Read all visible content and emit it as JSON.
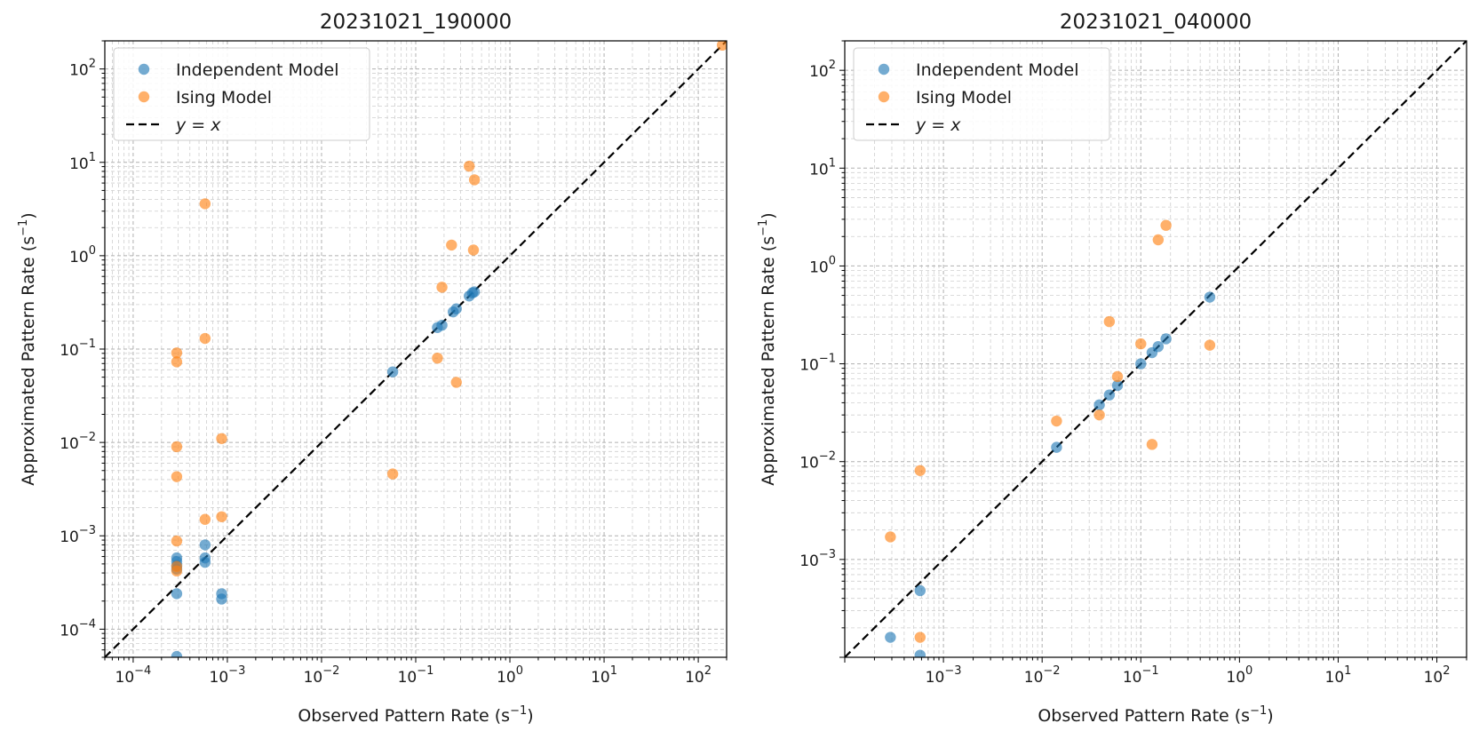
{
  "chart_data": [
    {
      "type": "scatter",
      "title": "20231021_190000",
      "xlabel_text": "Observed Pattern Rate (s",
      "xlabel_unit_exp": "−1",
      "xlabel_close": ")",
      "ylabel_text": "Approximated Pattern Rate (s",
      "ylabel_unit_exp": "−1",
      "ylabel_close": ")",
      "xscale": "log",
      "yscale": "log",
      "xlim": [
        5e-05,
        200
      ],
      "ylim": [
        5e-05,
        200
      ],
      "xticks": [
        {
          "base": "10",
          "exp": "−4",
          "value": 0.0001
        },
        {
          "base": "10",
          "exp": "−3",
          "value": 0.001
        },
        {
          "base": "10",
          "exp": "−2",
          "value": 0.01
        },
        {
          "base": "10",
          "exp": "−1",
          "value": 0.1
        },
        {
          "base": "10",
          "exp": "0",
          "value": 1
        },
        {
          "base": "10",
          "exp": "1",
          "value": 10
        },
        {
          "base": "10",
          "exp": "2",
          "value": 100
        }
      ],
      "yticks": [
        {
          "base": "10",
          "exp": "−4",
          "value": 0.0001
        },
        {
          "base": "10",
          "exp": "−3",
          "value": 0.001
        },
        {
          "base": "10",
          "exp": "−2",
          "value": 0.01
        },
        {
          "base": "10",
          "exp": "−1",
          "value": 0.1
        },
        {
          "base": "10",
          "exp": "0",
          "value": 1
        },
        {
          "base": "10",
          "exp": "1",
          "value": 10
        },
        {
          "base": "10",
          "exp": "2",
          "value": 100
        }
      ],
      "grid": true,
      "legend_position": "upper-left",
      "series": [
        {
          "name": "Independent Model",
          "color": "#1f77b4",
          "points": [
            [
              0.00029,
              0.00058
            ],
            [
              0.00029,
              0.00053
            ],
            [
              0.00029,
              0.00048
            ],
            [
              0.00029,
              0.00044
            ],
            [
              0.00029,
              0.00024
            ],
            [
              0.00029,
              5.1e-05
            ],
            [
              0.00058,
              0.0008
            ],
            [
              0.00058,
              0.00058
            ],
            [
              0.00058,
              0.00052
            ],
            [
              0.00087,
              0.00024
            ],
            [
              0.00087,
              0.00021
            ],
            [
              0.057,
              0.057
            ],
            [
              0.17,
              0.17
            ],
            [
              0.19,
              0.18
            ],
            [
              0.25,
              0.25
            ],
            [
              0.27,
              0.27
            ],
            [
              0.37,
              0.37
            ],
            [
              0.4,
              0.4
            ],
            [
              0.42,
              0.41
            ]
          ]
        },
        {
          "name": "Ising Model",
          "color": "#ff7f0e",
          "points": [
            [
              0.00029,
              0.091
            ],
            [
              0.00029,
              0.073
            ],
            [
              0.00029,
              0.009
            ],
            [
              0.00029,
              0.0043
            ],
            [
              0.00029,
              0.00088
            ],
            [
              0.00029,
              0.00047
            ],
            [
              0.00029,
              0.00042
            ],
            [
              0.00058,
              3.6
            ],
            [
              0.00058,
              0.13
            ],
            [
              0.00058,
              0.0015
            ],
            [
              0.00087,
              0.011
            ],
            [
              0.00087,
              0.0016
            ],
            [
              0.057,
              0.0046
            ],
            [
              0.17,
              0.08
            ],
            [
              0.19,
              0.46
            ],
            [
              0.24,
              1.3
            ],
            [
              0.27,
              0.044
            ],
            [
              0.37,
              9.1
            ],
            [
              0.41,
              1.15
            ],
            [
              0.42,
              6.5
            ],
            [
              180,
              180
            ]
          ]
        },
        {
          "name": "y = x",
          "line_label": "y = x",
          "color": "#000000",
          "style": "dashed",
          "points": [
            [
              5e-05,
              5e-05
            ],
            [
              200,
              200
            ]
          ]
        }
      ]
    },
    {
      "type": "scatter",
      "title": "20231021_040000",
      "xlabel_text": "Observed Pattern Rate (s",
      "xlabel_unit_exp": "−1",
      "xlabel_close": ")",
      "ylabel_text": "Approximated Pattern Rate (s",
      "ylabel_unit_exp": "−1",
      "ylabel_close": ")",
      "xscale": "log",
      "yscale": "log",
      "xlim": [
        0.0001,
        200
      ],
      "ylim": [
        0.0001,
        200
      ],
      "xticks": [
        {
          "base": "10",
          "exp": "−3",
          "value": 0.001
        },
        {
          "base": "10",
          "exp": "−2",
          "value": 0.01
        },
        {
          "base": "10",
          "exp": "−1",
          "value": 0.1
        },
        {
          "base": "10",
          "exp": "0",
          "value": 1
        },
        {
          "base": "10",
          "exp": "1",
          "value": 10
        },
        {
          "base": "10",
          "exp": "2",
          "value": 100
        }
      ],
      "yticks": [
        {
          "base": "10",
          "exp": "−3",
          "value": 0.001
        },
        {
          "base": "10",
          "exp": "−2",
          "value": 0.01
        },
        {
          "base": "10",
          "exp": "−1",
          "value": 0.1
        },
        {
          "base": "10",
          "exp": "0",
          "value": 1
        },
        {
          "base": "10",
          "exp": "1",
          "value": 10
        },
        {
          "base": "10",
          "exp": "2",
          "value": 100
        }
      ],
      "grid": true,
      "legend_position": "upper-left",
      "series": [
        {
          "name": "Independent Model",
          "color": "#1f77b4",
          "points": [
            [
              0.00029,
              0.00016
            ],
            [
              0.00058,
              0.00048
            ],
            [
              0.00058,
              0.000105
            ],
            [
              0.014,
              0.014
            ],
            [
              0.038,
              0.038
            ],
            [
              0.048,
              0.048
            ],
            [
              0.058,
              0.06
            ],
            [
              0.1,
              0.1
            ],
            [
              0.13,
              0.13
            ],
            [
              0.15,
              0.15
            ],
            [
              0.18,
              0.18
            ],
            [
              0.5,
              0.48
            ]
          ]
        },
        {
          "name": "Ising Model",
          "color": "#ff7f0e",
          "points": [
            [
              0.00029,
              0.0017
            ],
            [
              0.00058,
              0.0081
            ],
            [
              0.00058,
              0.00016
            ],
            [
              0.014,
              0.026
            ],
            [
              0.038,
              0.03
            ],
            [
              0.048,
              0.27
            ],
            [
              0.058,
              0.074
            ],
            [
              0.1,
              0.16
            ],
            [
              0.13,
              0.015
            ],
            [
              0.15,
              1.85
            ],
            [
              0.18,
              2.6
            ],
            [
              0.5,
              0.155
            ]
          ]
        },
        {
          "name": "y = x",
          "line_label": "y = x",
          "color": "#000000",
          "style": "dashed",
          "points": [
            [
              0.0001,
              0.0001
            ],
            [
              200,
              200
            ]
          ]
        }
      ]
    }
  ]
}
